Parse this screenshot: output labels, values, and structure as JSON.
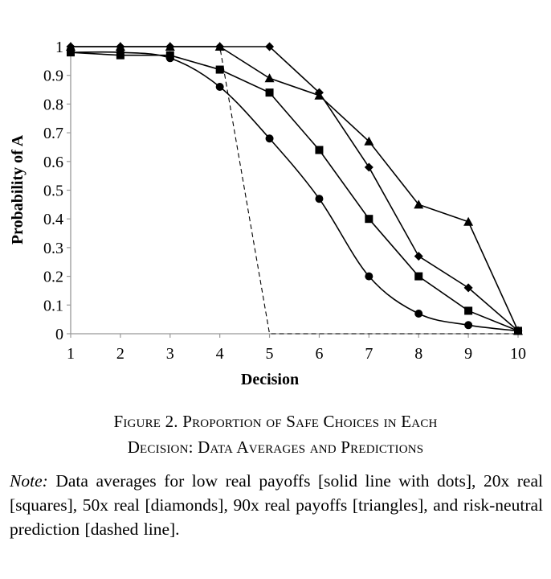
{
  "chart_data": {
    "type": "line",
    "x": [
      1,
      2,
      3,
      4,
      5,
      6,
      7,
      8,
      9,
      10
    ],
    "series": [
      {
        "marker": "circle",
        "line": "smooth",
        "values": [
          0.98,
          0.98,
          0.96,
          0.86,
          0.68,
          0.47,
          0.2,
          0.07,
          0.03,
          0.01
        ]
      },
      {
        "marker": "square",
        "line": "straight",
        "values": [
          0.98,
          0.97,
          0.97,
          0.92,
          0.84,
          0.64,
          0.4,
          0.2,
          0.08,
          0.01
        ]
      },
      {
        "marker": "diamond",
        "line": "straight",
        "values": [
          1.0,
          1.0,
          1.0,
          1.0,
          1.0,
          0.84,
          0.58,
          0.27,
          0.16,
          0.01
        ]
      },
      {
        "marker": "triangle",
        "line": "straight",
        "values": [
          1.0,
          1.0,
          1.0,
          1.0,
          0.89,
          0.83,
          0.67,
          0.45,
          0.39,
          0.01
        ]
      },
      {
        "marker": "none",
        "line": "dashed",
        "values": [
          1.0,
          1.0,
          1.0,
          1.0,
          0.0,
          0.0,
          0.0,
          0.0,
          0.0,
          0.0
        ]
      }
    ],
    "xlabel": "Decision",
    "ylabel": "Probability of A",
    "xlim": [
      1,
      10
    ],
    "ylim": [
      0,
      1
    ],
    "xticks": [
      "1",
      "2",
      "3",
      "4",
      "5",
      "6",
      "7",
      "8",
      "9",
      "10"
    ],
    "yticks": [
      "0",
      "0.1",
      "0.2",
      "0.3",
      "0.4",
      "0.5",
      "0.6",
      "0.7",
      "0.8",
      "0.9",
      "1"
    ],
    "grid": false,
    "legend": "none",
    "colors": {
      "ink": "#000000",
      "axis": "#999999"
    }
  },
  "caption": {
    "line1": "Figure 2. Proportion of Safe Choices in Each",
    "line2": "Decision: Data Averages and Predictions"
  },
  "note": {
    "label": "Note:",
    "text": " Data averages for low real payoffs [solid line with dots], 20x real [squares], 50x real [diamonds], 90x real payoffs [triangles], and risk-neutral prediction [dashed line]."
  }
}
